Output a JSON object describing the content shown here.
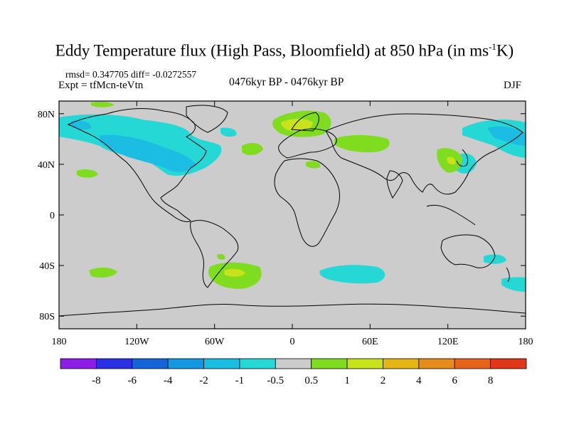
{
  "title": {
    "prefix": "Eddy Temperature flux (High Pass, Bloomfield) at 850 hPa (in ms",
    "sup": "-1",
    "suffix": "K)"
  },
  "stats": {
    "rmsd_label": "rmsd=",
    "rmsd_value": "0.347705",
    "diff_label": "diff=",
    "diff_value": "-0.0272557"
  },
  "experiment": "Expt = tfMcn-teVtn",
  "period": "0476kyr BP - 0476kyr BP",
  "season": "DJF",
  "map": {
    "background_color": "#cccccc",
    "lon_ticks": [
      {
        "value": -180,
        "label": "180"
      },
      {
        "value": -120,
        "label": "120W"
      },
      {
        "value": -60,
        "label": "60W"
      },
      {
        "value": 0,
        "label": "0"
      },
      {
        "value": 60,
        "label": "60E"
      },
      {
        "value": 120,
        "label": "120E"
      },
      {
        "value": 180,
        "label": "180"
      }
    ],
    "lat_ticks": [
      {
        "value": 80,
        "label": "80N"
      },
      {
        "value": 40,
        "label": "40N"
      },
      {
        "value": 0,
        "label": "0"
      },
      {
        "value": -40,
        "label": "40S"
      },
      {
        "value": -80,
        "label": "80S"
      }
    ],
    "lat_range": [
      -90,
      90
    ],
    "lon_range": [
      -180,
      180
    ]
  },
  "colorbar": {
    "labels": [
      "-8",
      "-6",
      "-4",
      "-2",
      "-1",
      "-0.5",
      "0.5",
      "1",
      "2",
      "4",
      "6",
      "8"
    ],
    "colors": [
      "#8c1ce6",
      "#2a30e3",
      "#1565d8",
      "#1398e2",
      "#1bbde3",
      "#26d8d5",
      "#cccccc",
      "#7fdc1e",
      "#c8e21b",
      "#e3b614",
      "#e58c1a",
      "#e3641a",
      "#e0361a"
    ]
  }
}
